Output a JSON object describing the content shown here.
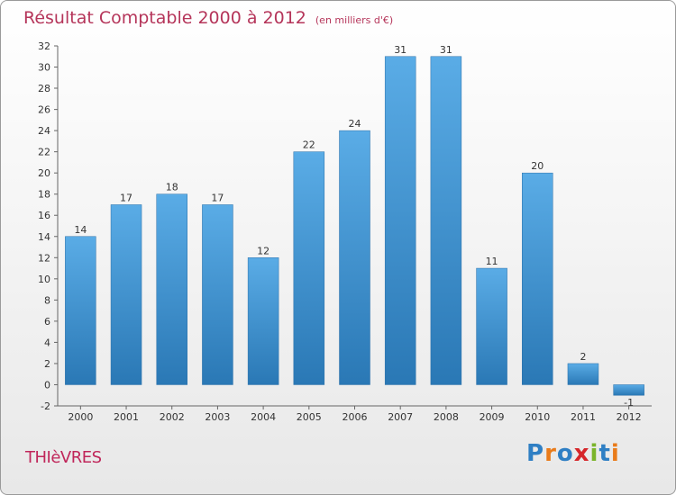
{
  "page": {
    "title": "Résultat Comptable 2000 à 2012",
    "subtitle": "(en milliers d'€)",
    "commune": "THIèVRES",
    "brand": "Proxiti"
  },
  "colors": {
    "title": "#b5355a",
    "commune": "#c0265a",
    "bar_top": "#5aace6",
    "bar_bottom": "#2a78b5",
    "logo_letters": [
      "#2f7fc4",
      "#e97b1a",
      "#2f7fc4",
      "#d6262a",
      "#7bb42a",
      "#2f7fc4",
      "#e97b1a"
    ]
  },
  "chart_data": {
    "type": "bar",
    "title": "Résultat Comptable 2000 à 2012",
    "subtitle": "(en milliers d'€)",
    "categories": [
      "2000",
      "2001",
      "2002",
      "2003",
      "2004",
      "2005",
      "2006",
      "2007",
      "2008",
      "2009",
      "2010",
      "2011",
      "2012"
    ],
    "values": [
      14,
      17,
      18,
      17,
      12,
      22,
      24,
      31,
      31,
      11,
      20,
      2,
      -1
    ],
    "ylim": [
      -2,
      32
    ],
    "yticks": [
      -2,
      0,
      2,
      4,
      6,
      8,
      10,
      12,
      14,
      16,
      18,
      20,
      22,
      24,
      26,
      28,
      30,
      32
    ],
    "grid": false,
    "legend": "none"
  }
}
